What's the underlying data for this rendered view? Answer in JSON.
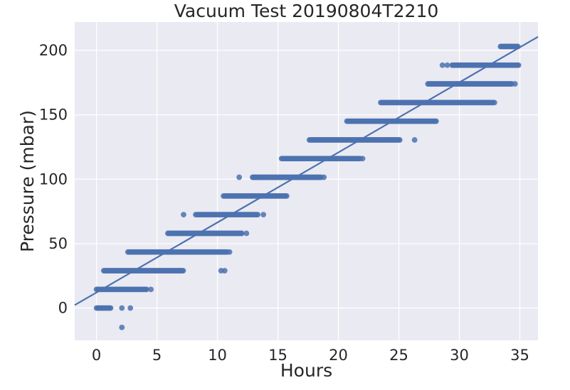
{
  "chart_data": {
    "type": "scatter",
    "title": "Vacuum Test 20190804T2210",
    "xlabel": "Hours",
    "ylabel": "Pressure (mbar)",
    "xlim": [
      -1.8,
      36.5
    ],
    "ylim": [
      -25,
      222
    ],
    "x_ticks": [
      "0",
      "5",
      "10",
      "15",
      "20",
      "25",
      "30",
      "35"
    ],
    "y_ticks": [
      "0",
      "50",
      "100",
      "150",
      "200"
    ],
    "grid": true,
    "legend": "none",
    "colors": {
      "background": "#EAEAF2",
      "grid": "#FFFFFF",
      "point": "#4C72B0",
      "line": "#4C72B0"
    },
    "series": [
      {
        "name": "",
        "segments": [
          {
            "y": 0,
            "x_start": 0.0,
            "x_end": 1.2
          },
          {
            "y": 14.5,
            "x_start": 0.0,
            "x_end": 4.2
          },
          {
            "y": 29,
            "x_start": 0.6,
            "x_end": 7.2
          },
          {
            "y": 43.5,
            "x_start": 2.7,
            "x_end": 10.8
          },
          {
            "y": 58,
            "x_start": 5.9,
            "x_end": 12.1
          },
          {
            "y": 72.5,
            "x_start": 8.2,
            "x_end": 13.4
          },
          {
            "y": 87,
            "x_start": 10.5,
            "x_end": 15.8
          },
          {
            "y": 101.5,
            "x_start": 12.9,
            "x_end": 18.6
          },
          {
            "y": 116,
            "x_start": 15.3,
            "x_end": 21.8
          },
          {
            "y": 130.5,
            "x_start": 17.6,
            "x_end": 25.1
          },
          {
            "y": 145,
            "x_start": 20.7,
            "x_end": 28.1
          },
          {
            "y": 159.5,
            "x_start": 23.5,
            "x_end": 32.8
          },
          {
            "y": 174,
            "x_start": 27.4,
            "x_end": 34.4
          },
          {
            "y": 188.5,
            "x_start": 29.4,
            "x_end": 34.9
          },
          {
            "y": 203,
            "x_start": 33.4,
            "x_end": 34.9
          }
        ],
        "outliers": [
          {
            "x": 2.1,
            "y": -15
          },
          {
            "x": 2.1,
            "y": 0
          },
          {
            "x": 2.8,
            "y": 0
          },
          {
            "x": 4.5,
            "y": 14.5
          },
          {
            "x": 10.3,
            "y": 29
          },
          {
            "x": 10.6,
            "y": 29
          },
          {
            "x": 2.6,
            "y": 43.5
          },
          {
            "x": 11.0,
            "y": 43.5
          },
          {
            "x": 12.4,
            "y": 58
          },
          {
            "x": 7.2,
            "y": 72.5
          },
          {
            "x": 13.8,
            "y": 72.5
          },
          {
            "x": 11.8,
            "y": 101.5
          },
          {
            "x": 18.8,
            "y": 101.5
          },
          {
            "x": 22.0,
            "y": 116
          },
          {
            "x": 26.3,
            "y": 130.5
          },
          {
            "x": 32.0,
            "y": 159.5
          },
          {
            "x": 32.9,
            "y": 159.5
          },
          {
            "x": 34.6,
            "y": 174
          },
          {
            "x": 28.6,
            "y": 188.5
          },
          {
            "x": 29.0,
            "y": 188.5
          }
        ]
      }
    ],
    "fit_line": {
      "x": [
        -1.8,
        36.5
      ],
      "y": [
        2.3,
        210.5
      ]
    }
  }
}
